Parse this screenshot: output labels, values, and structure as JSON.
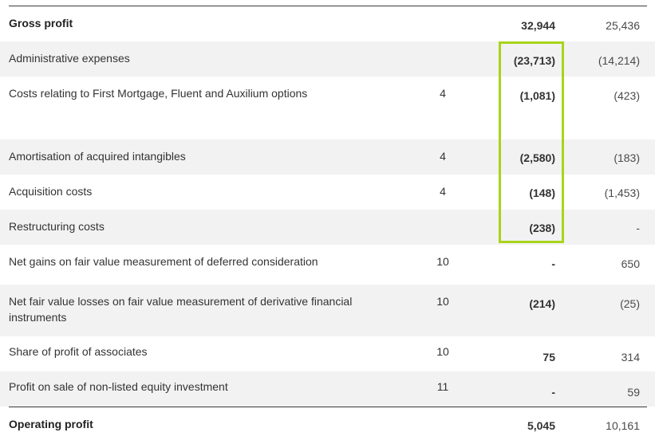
{
  "rows": [
    {
      "label": "Gross profit",
      "note": "",
      "current": "32,944",
      "previous": "25,436"
    },
    {
      "label": "Administrative expenses",
      "note": "",
      "current": "(23,713)",
      "previous": "(14,214)"
    },
    {
      "label": "Costs relating to First Mortgage, Fluent and Auxilium options",
      "note": "4",
      "current": "(1,081)",
      "previous": "(423)"
    },
    {
      "label": "Amortisation of acquired intangibles",
      "note": "4",
      "current": "(2,580)",
      "previous": "(183)"
    },
    {
      "label": "Acquisition costs",
      "note": "4",
      "current": "(148)",
      "previous": "(1,453)"
    },
    {
      "label": "Restructuring costs",
      "note": "",
      "current": "(238)",
      "previous": "-"
    },
    {
      "label": "Net gains on fair value measurement of deferred consideration",
      "note": "10",
      "current": "-",
      "previous": "650"
    },
    {
      "label": "Net fair value losses on fair value measurement of derivative financial instruments",
      "note": "10",
      "current": "(214)",
      "previous": "(25)"
    },
    {
      "label": "Share of profit of associates",
      "note": "10",
      "current": "75",
      "previous": "314"
    },
    {
      "label": "Profit on sale of non-listed equity investment",
      "note": "11",
      "current": "-",
      "previous": "59"
    },
    {
      "label": "Operating profit",
      "note": "",
      "current": "5,045",
      "previous": "10,161"
    }
  ],
  "colors": {
    "highlight_border": "#a8d41c",
    "row_shade": "#f2f2f2",
    "rule": "#3a3a3a"
  }
}
